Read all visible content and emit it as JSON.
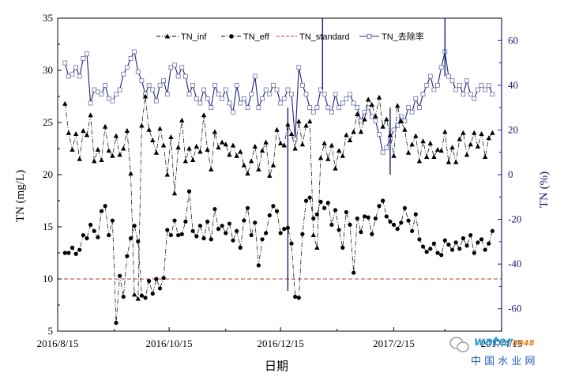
{
  "chart_data": {
    "type": "line",
    "xlabel": "日期",
    "ylabel": "TN (mg/L)",
    "y2label": "TN (%)",
    "x_ticks": [
      "2016/8/15",
      "2016/10/15",
      "2016/12/15",
      "2017/2/15",
      "2017/4/15"
    ],
    "x_range": [
      "2016-08-15",
      "2017-04-15"
    ],
    "ylim": [
      5,
      35
    ],
    "y_ticks": [
      5,
      10,
      15,
      20,
      25,
      30,
      35
    ],
    "y2lim": [
      -70,
      70
    ],
    "y2_ticks": [
      -60,
      -40,
      -20,
      0,
      20,
      40,
      60
    ],
    "legend_position": "top",
    "grid": false,
    "series": [
      {
        "name": "TN_inf",
        "axis": "left",
        "marker": "triangle",
        "color": "#000000",
        "x": [
          "2016-08-19",
          "2016-08-21",
          "2016-08-23",
          "2016-08-25",
          "2016-08-27",
          "2016-08-29",
          "2016-08-31",
          "2016-09-02",
          "2016-09-04",
          "2016-09-06",
          "2016-09-08",
          "2016-09-10",
          "2016-09-12",
          "2016-09-14",
          "2016-09-16",
          "2016-09-18",
          "2016-09-20",
          "2016-09-22",
          "2016-09-24",
          "2016-09-26",
          "2016-09-28",
          "2016-09-30",
          "2016-10-02",
          "2016-10-04",
          "2016-10-06",
          "2016-10-08",
          "2016-10-10",
          "2016-10-12",
          "2016-10-14",
          "2016-10-16",
          "2016-10-18",
          "2016-10-20",
          "2016-10-22",
          "2016-10-24",
          "2016-10-26",
          "2016-10-28",
          "2016-10-30",
          "2016-11-01",
          "2016-11-03",
          "2016-11-05",
          "2016-11-07",
          "2016-11-09",
          "2016-11-11",
          "2016-11-13",
          "2016-11-15",
          "2016-11-17",
          "2016-11-19",
          "2016-11-21",
          "2016-11-23",
          "2016-11-25",
          "2016-11-27",
          "2016-11-29",
          "2016-12-01",
          "2016-12-03",
          "2016-12-05",
          "2016-12-07",
          "2016-12-09",
          "2016-12-11",
          "2016-12-13",
          "2016-12-15",
          "2016-12-17",
          "2016-12-19",
          "2016-12-21",
          "2016-12-23",
          "2016-12-25",
          "2016-12-27",
          "2016-12-29",
          "2016-12-31",
          "2017-01-02",
          "2017-01-04",
          "2017-01-06",
          "2017-01-08",
          "2017-01-10",
          "2017-01-12",
          "2017-01-14",
          "2017-01-16",
          "2017-01-18",
          "2017-01-20",
          "2017-01-22",
          "2017-01-24",
          "2017-01-26",
          "2017-01-28",
          "2017-01-30",
          "2017-02-01",
          "2017-02-03",
          "2017-02-05",
          "2017-02-07",
          "2017-02-09",
          "2017-02-11",
          "2017-02-13",
          "2017-02-15",
          "2017-02-17",
          "2017-02-19",
          "2017-02-21",
          "2017-02-23",
          "2017-02-25",
          "2017-02-27",
          "2017-03-01",
          "2017-03-03",
          "2017-03-05",
          "2017-03-07",
          "2017-03-09",
          "2017-03-11",
          "2017-03-13",
          "2017-03-15",
          "2017-03-17",
          "2017-03-19",
          "2017-03-21",
          "2017-03-23",
          "2017-03-25",
          "2017-03-27",
          "2017-03-29",
          "2017-03-31",
          "2017-04-02",
          "2017-04-04",
          "2017-04-06",
          "2017-04-08",
          "2017-04-10"
        ],
        "values": [
          26.8,
          24.0,
          22.4,
          23.9,
          21.5,
          24.2,
          23.8,
          25.7,
          21.3,
          22.4,
          21.4,
          24.6,
          22.3,
          21.8,
          23.7,
          21.9,
          22.5,
          24.2,
          20.1,
          8.5,
          8.1,
          24.7,
          27.5,
          24.3,
          23.3,
          22.1,
          24.4,
          22.8,
          20.0,
          23.6,
          18.2,
          22.6,
          25.2,
          21.3,
          22.5,
          21.4,
          22.7,
          22.2,
          25.7,
          22.4,
          20.5,
          24.1,
          22.6,
          23.1,
          22.9,
          21.9,
          22.8,
          21.8,
          22.2,
          20.9,
          20.1,
          21.3,
          22.7,
          20.5,
          22.3,
          23.1,
          19.9,
          20.9,
          24.3,
          23.0,
          22.8,
          24.8,
          23.9,
          22.5,
          25.1,
          22.9,
          24.7,
          25.1,
          14.2,
          13.0,
          21.6,
          23.0,
          21.5,
          22.8,
          20.6,
          22.3,
          21.8,
          23.8,
          23.3,
          24.1,
          25.8,
          24.1,
          25.3,
          27.2,
          26.7,
          25.6,
          27.4,
          24.6,
          25.3,
          23.8,
          21.8,
          26.6,
          25.1,
          24.3,
          22.1,
          22.9,
          23.7,
          21.3,
          23.2,
          21.7,
          23.0,
          21.7,
          22.4,
          22.3,
          24.1,
          21.2,
          22.6,
          21.2,
          23.4,
          24.0,
          21.9,
          22.9,
          24.0,
          22.7,
          23.9,
          21.7,
          23.5,
          24.0
        ]
      },
      {
        "name": "TN_eff",
        "axis": "left",
        "marker": "circle",
        "color": "#000000",
        "x": [
          "2016-08-19",
          "2016-08-21",
          "2016-08-23",
          "2016-08-25",
          "2016-08-27",
          "2016-08-29",
          "2016-08-31",
          "2016-09-02",
          "2016-09-04",
          "2016-09-06",
          "2016-09-08",
          "2016-09-10",
          "2016-09-12",
          "2016-09-14",
          "2016-09-16",
          "2016-09-18",
          "2016-09-20",
          "2016-09-22",
          "2016-09-24",
          "2016-09-26",
          "2016-09-28",
          "2016-09-30",
          "2016-10-02",
          "2016-10-04",
          "2016-10-06",
          "2016-10-08",
          "2016-10-10",
          "2016-10-12",
          "2016-10-14",
          "2016-10-16",
          "2016-10-18",
          "2016-10-20",
          "2016-10-22",
          "2016-10-24",
          "2016-10-26",
          "2016-10-28",
          "2016-10-30",
          "2016-11-01",
          "2016-11-03",
          "2016-11-05",
          "2016-11-07",
          "2016-11-09",
          "2016-11-11",
          "2016-11-13",
          "2016-11-15",
          "2016-11-17",
          "2016-11-19",
          "2016-11-21",
          "2016-11-23",
          "2016-11-25",
          "2016-11-27",
          "2016-11-29",
          "2016-12-01",
          "2016-12-03",
          "2016-12-05",
          "2016-12-07",
          "2016-12-09",
          "2016-12-11",
          "2016-12-13",
          "2016-12-15",
          "2016-12-17",
          "2016-12-19",
          "2016-12-21",
          "2016-12-23",
          "2016-12-25",
          "2016-12-27",
          "2016-12-29",
          "2016-12-31",
          "2017-01-02",
          "2017-01-04",
          "2017-01-06",
          "2017-01-08",
          "2017-01-10",
          "2017-01-12",
          "2017-01-14",
          "2017-01-16",
          "2017-01-18",
          "2017-01-20",
          "2017-01-22",
          "2017-01-24",
          "2017-01-26",
          "2017-01-28",
          "2017-01-30",
          "2017-02-01",
          "2017-02-03",
          "2017-02-05",
          "2017-02-07",
          "2017-02-09",
          "2017-02-11",
          "2017-02-13",
          "2017-02-15",
          "2017-02-17",
          "2017-02-19",
          "2017-02-21",
          "2017-02-23",
          "2017-02-25",
          "2017-02-27",
          "2017-03-01",
          "2017-03-03",
          "2017-03-05",
          "2017-03-07",
          "2017-03-09",
          "2017-03-11",
          "2017-03-13",
          "2017-03-15",
          "2017-03-17",
          "2017-03-19",
          "2017-03-21",
          "2017-03-23",
          "2017-03-25",
          "2017-03-27",
          "2017-03-29",
          "2017-03-31",
          "2017-04-02",
          "2017-04-04",
          "2017-04-06",
          "2017-04-08",
          "2017-04-10"
        ],
        "values": [
          12.5,
          12.5,
          13.0,
          12.4,
          12.8,
          14.2,
          13.9,
          15.2,
          14.6,
          14.0,
          16.5,
          17.0,
          14.2,
          15.6,
          5.8,
          10.3,
          8.3,
          12.2,
          13.9,
          15.1,
          13.6,
          8.4,
          8.2,
          9.8,
          8.6,
          10.0,
          9.1,
          10.1,
          14.7,
          14.2,
          15.6,
          14.2,
          14.3,
          15.5,
          18.4,
          14.6,
          14.1,
          15.1,
          13.9,
          15.5,
          13.8,
          16.7,
          14.8,
          15.1,
          14.4,
          15.3,
          13.7,
          14.6,
          13.0,
          15.6,
          16.8,
          14.2,
          15.4,
          11.3,
          13.8,
          14.4,
          16.1,
          17.0,
          16.5,
          14.4,
          14.8,
          14.9,
          13.4,
          8.3,
          8.2,
          14.3,
          17.5,
          17.8,
          15.8,
          16.2,
          17.4,
          16.8,
          17.3,
          15.2,
          16.6,
          14.7,
          13.0,
          16.4,
          15.2,
          10.6,
          15.8,
          14.5,
          16.0,
          15.9,
          14.3,
          15.8,
          17.0,
          17.5,
          16.0,
          15.5,
          15.2,
          14.8,
          15.4,
          16.8,
          15.6,
          14.6,
          16.2,
          13.8,
          13.1,
          12.6,
          12.9,
          13.4,
          12.5,
          12.3,
          13.7,
          13.3,
          12.8,
          13.5,
          12.9,
          13.9,
          13.2,
          14.2,
          12.5,
          13.5,
          13.8,
          12.8,
          13.4,
          14.6
        ]
      },
      {
        "name": "TN_standard",
        "axis": "left",
        "style": "dashed",
        "color": "#c0392b",
        "x": [
          "2016-08-15",
          "2017-04-15"
        ],
        "values": [
          10,
          10
        ]
      },
      {
        "name": "TN_去除率",
        "axis": "right",
        "marker": "square-open",
        "color": "#1a237e",
        "x": [
          "2016-08-19",
          "2016-08-21",
          "2016-08-23",
          "2016-08-25",
          "2016-08-27",
          "2016-08-29",
          "2016-08-31",
          "2016-09-02",
          "2016-09-04",
          "2016-09-06",
          "2016-09-08",
          "2016-09-10",
          "2016-09-12",
          "2016-09-14",
          "2016-09-16",
          "2016-09-18",
          "2016-09-20",
          "2016-09-22",
          "2016-09-24",
          "2016-09-26",
          "2016-09-28",
          "2016-09-30",
          "2016-10-02",
          "2016-10-04",
          "2016-10-06",
          "2016-10-08",
          "2016-10-10",
          "2016-10-12",
          "2016-10-14",
          "2016-10-16",
          "2016-10-18",
          "2016-10-20",
          "2016-10-22",
          "2016-10-24",
          "2016-10-26",
          "2016-10-28",
          "2016-10-30",
          "2016-11-01",
          "2016-11-03",
          "2016-11-05",
          "2016-11-07",
          "2016-11-09",
          "2016-11-11",
          "2016-11-13",
          "2016-11-15",
          "2016-11-17",
          "2016-11-19",
          "2016-11-21",
          "2016-11-23",
          "2016-11-25",
          "2016-11-27",
          "2016-11-29",
          "2016-12-01",
          "2016-12-03",
          "2016-12-05",
          "2016-12-07",
          "2016-12-09",
          "2016-12-11",
          "2016-12-13",
          "2016-12-15",
          "2016-12-17",
          "2016-12-19",
          "2016-12-21",
          "2016-12-23",
          "2016-12-25",
          "2016-12-27",
          "2016-12-29",
          "2016-12-31",
          "2017-01-02",
          "2017-01-04",
          "2017-01-06",
          "2017-01-08",
          "2017-01-10",
          "2017-01-12",
          "2017-01-14",
          "2017-01-16",
          "2017-01-18",
          "2017-01-20",
          "2017-01-22",
          "2017-01-24",
          "2017-01-26",
          "2017-01-28",
          "2017-01-30",
          "2017-02-01",
          "2017-02-03",
          "2017-02-05",
          "2017-02-07",
          "2017-02-09",
          "2017-02-11",
          "2017-02-13",
          "2017-02-15",
          "2017-02-17",
          "2017-02-19",
          "2017-02-21",
          "2017-02-23",
          "2017-02-25",
          "2017-02-27",
          "2017-03-01",
          "2017-03-03",
          "2017-03-05",
          "2017-03-07",
          "2017-03-09",
          "2017-03-11",
          "2017-03-13",
          "2017-03-15",
          "2017-03-17",
          "2017-03-19",
          "2017-03-21",
          "2017-03-23",
          "2017-03-25",
          "2017-03-27",
          "2017-03-29",
          "2017-03-31",
          "2017-04-02",
          "2017-04-04",
          "2017-04-06",
          "2017-04-08",
          "2017-04-10"
        ],
        "values": [
          50,
          44,
          45,
          48,
          44,
          52,
          54,
          32,
          38,
          37,
          36,
          40,
          34,
          33,
          36,
          38,
          45,
          48,
          52,
          55,
          46,
          42,
          36,
          40,
          38,
          33,
          40,
          42,
          36,
          48,
          49,
          44,
          48,
          44,
          36,
          40,
          34,
          32,
          38,
          34,
          30,
          40,
          36,
          34,
          38,
          32,
          28,
          40,
          32,
          34,
          30,
          36,
          44,
          30,
          34,
          38,
          36,
          40,
          38,
          32,
          34,
          38,
          36,
          16,
          48,
          40,
          36,
          30,
          28,
          30,
          38,
          36,
          30,
          28,
          36,
          30,
          32,
          34,
          36,
          32,
          30,
          24,
          28,
          30,
          26,
          24,
          18,
          10,
          12,
          16,
          20,
          22,
          26,
          24,
          30,
          28,
          34,
          30,
          36,
          40,
          44,
          38,
          40,
          48,
          55,
          44,
          42,
          38,
          40,
          36,
          42,
          36,
          34,
          38,
          40,
          38,
          40,
          36
        ]
      }
    ],
    "spikes": [
      {
        "series": "TN_去除率",
        "x": "2016-12-19",
        "value": 30,
        "to": -52
      },
      {
        "series": "TN_去除率",
        "x": "2017-01-07",
        "value": 70,
        "to": 38
      },
      {
        "series": "TN_去除率",
        "x": "2017-02-13",
        "value": 30,
        "to": 0
      },
      {
        "series": "TN_去除率",
        "x": "2017-03-15",
        "value": 70,
        "to": 44
      }
    ]
  },
  "watermark": {
    "top_text": "water",
    "top_suffix": "8848",
    "bottom_text": "中 国 水 业 网"
  }
}
